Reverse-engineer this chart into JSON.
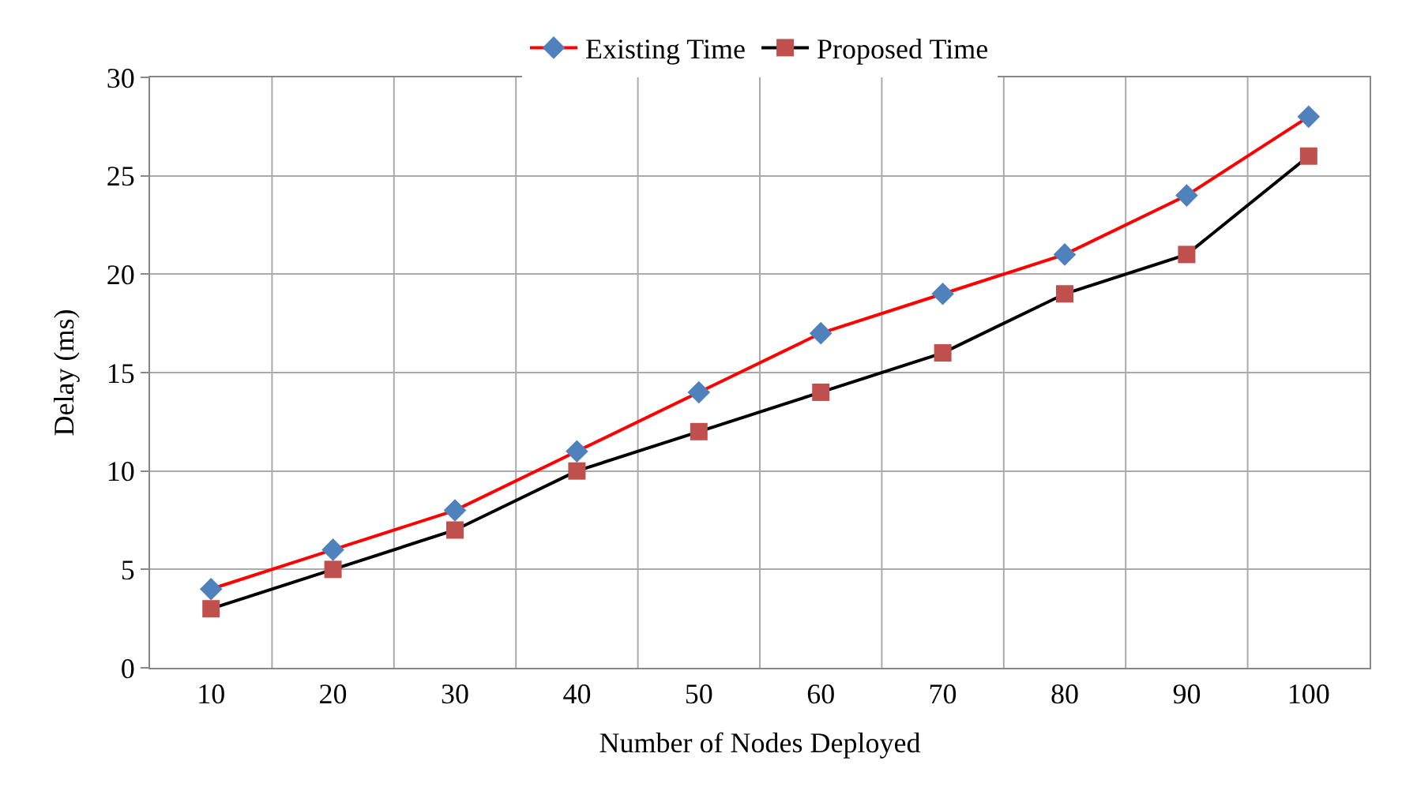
{
  "chart_data": {
    "type": "line",
    "xlabel": "Number of Nodes Deployed",
    "ylabel": "Delay (ms)",
    "categories": [
      "10",
      "20",
      "30",
      "40",
      "50",
      "60",
      "70",
      "80",
      "90",
      "100"
    ],
    "series": [
      {
        "name": "Existing Time",
        "color": "#ff0000",
        "marker": "diamond",
        "colors": [
          "#4f81bd",
          "#4f81bd",
          "#4f81bd",
          "#4f81bd",
          "#4f81bd",
          "#4f81bd",
          "#4f81bd",
          "#4f81bd",
          "#4f81bd",
          "#4f81bd"
        ],
        "values": [
          4,
          6,
          8,
          11,
          14,
          17,
          19,
          21,
          24,
          28
        ]
      },
      {
        "name": "Proposed Time",
        "color": "#000000",
        "marker": "square",
        "colors": [
          "#c0504d",
          "#c0504d",
          "#c0504d",
          "#c0504d",
          "#c0504d",
          "#c0504d",
          "#c0504d",
          "#c0504d",
          "#c0504d",
          "#c0504d"
        ],
        "values": [
          3,
          5,
          7,
          10,
          12,
          14,
          16,
          19,
          21,
          26
        ]
      }
    ],
    "ylim": [
      0,
      30
    ],
    "yticks": [
      0,
      5,
      10,
      15,
      20,
      25,
      30
    ],
    "grid": true,
    "legend": "top",
    "line_style": "solid"
  }
}
